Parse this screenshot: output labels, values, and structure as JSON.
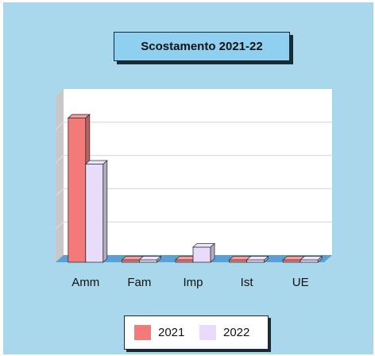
{
  "chart_data": {
    "type": "bar",
    "title": "Scostamento 2021-22",
    "categories": [
      "Amm",
      "Fam",
      "Imp",
      "Ist",
      "UE"
    ],
    "series": [
      {
        "name": "2021",
        "values": [
          191,
          0,
          0,
          0,
          0
        ],
        "color": "#f47a7a"
      },
      {
        "name": "2022",
        "values": [
          130,
          0,
          20,
          0,
          0
        ],
        "color": "#e8dcfa"
      }
    ],
    "ylim": [
      0,
      220
    ],
    "grid": true,
    "legend_position": "bottom-center",
    "background_color": "#a9d8ec",
    "plot_color": "#ffffff",
    "floor_color": "#5aa0d8"
  }
}
